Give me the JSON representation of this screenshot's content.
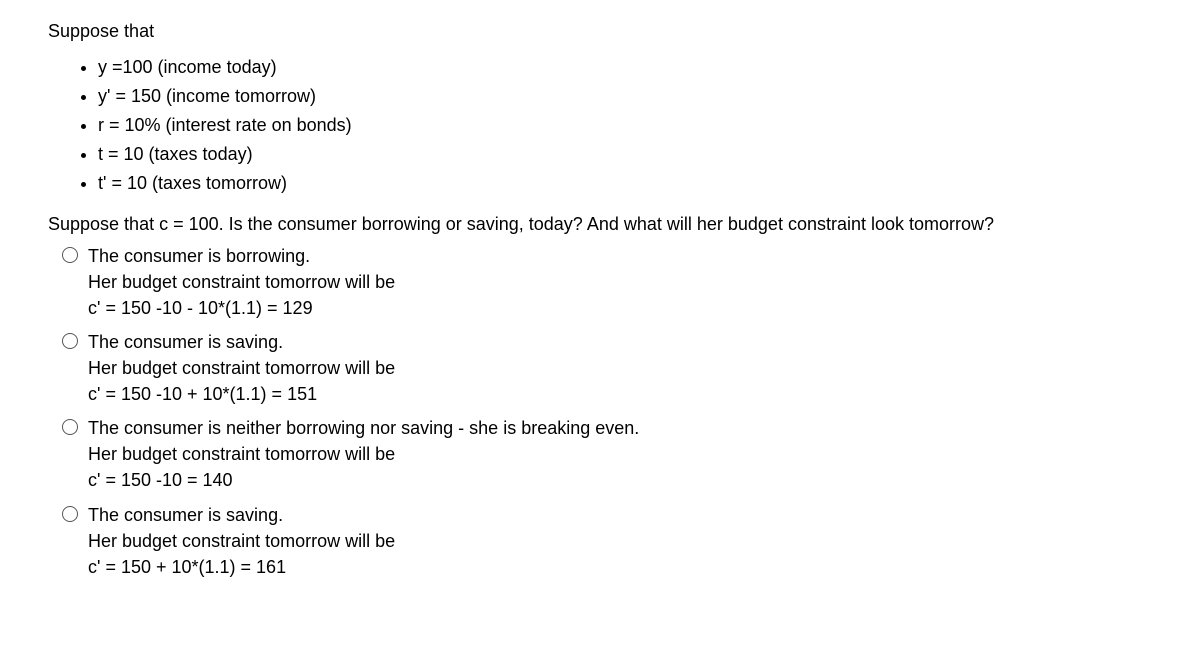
{
  "intro": "Suppose that",
  "bullets": [
    "y =100 (income today)",
    "y' = 150 (income tomorrow)",
    "r = 10% (interest rate on bonds)",
    "t = 10 (taxes today)",
    "t' = 10 (taxes tomorrow)"
  ],
  "question": "Suppose that c = 100. Is the consumer borrowing or saving, today? And what will her budget constraint look tomorrow?",
  "options": [
    {
      "l1": "The consumer is borrowing.",
      "l2": "Her budget constraint tomorrow will be",
      "l3": "c' = 150 -10 - 10*(1.1) = 129"
    },
    {
      "l1": "The consumer is saving.",
      "l2": "Her budget constraint tomorrow will be",
      "l3": "c' = 150 -10 + 10*(1.1) = 151"
    },
    {
      "l1": "The consumer is neither borrowing nor saving - she is breaking even.",
      "l2": "Her budget constraint tomorrow will be",
      "l3": "c' = 150 -10 = 140"
    },
    {
      "l1": "The consumer is saving.",
      "l2": "Her budget constraint tomorrow will be",
      "l3": "c' = 150 + 10*(1.1) = 161"
    }
  ]
}
